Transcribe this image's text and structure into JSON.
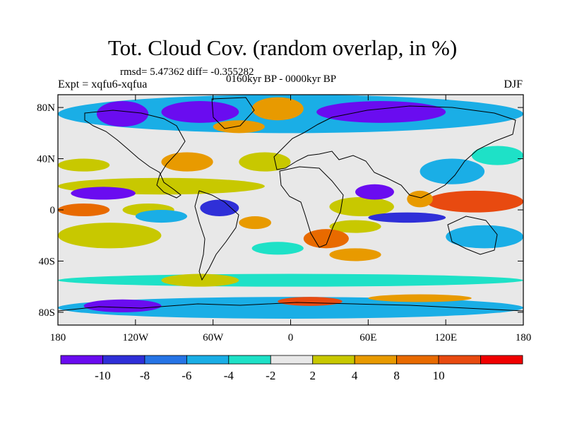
{
  "header": {
    "title": "Tot. Cloud Cov. (random overlap, in %)",
    "stats": "rmsd= 5.47362 diff= -0.355282",
    "expt": "Expt = xqfu6-xqfua",
    "period": "0160kyr BP - 0000kyr BP",
    "season": "DJF"
  },
  "map": {
    "projection": "cylindrical-equidistant",
    "lon_range": [
      -180,
      180
    ],
    "lat_range": [
      -90,
      90
    ],
    "lon_ticks": [
      {
        "value": -180,
        "label": "180"
      },
      {
        "value": -120,
        "label": "120W"
      },
      {
        "value": -60,
        "label": "60W"
      },
      {
        "value": 0,
        "label": "0"
      },
      {
        "value": 60,
        "label": "60E"
      },
      {
        "value": 120,
        "label": "120E"
      },
      {
        "value": 180,
        "label": "180"
      }
    ],
    "lat_ticks": [
      {
        "value": 80,
        "label": "80N"
      },
      {
        "value": 40,
        "label": "40N"
      },
      {
        "value": 0,
        "label": "0"
      },
      {
        "value": -40,
        "label": "40S"
      },
      {
        "value": -80,
        "label": "80S"
      }
    ],
    "anomaly_regions": [
      {
        "lon": [
          -180,
          180
        ],
        "lat": [
          60,
          90
        ],
        "value": -6
      },
      {
        "lon": [
          -150,
          -110
        ],
        "lat": [
          65,
          85
        ],
        "value": -11
      },
      {
        "lon": [
          -100,
          -40
        ],
        "lat": [
          68,
          85
        ],
        "value": -11
      },
      {
        "lon": [
          20,
          120
        ],
        "lat": [
          68,
          85
        ],
        "value": -11
      },
      {
        "lon": [
          -30,
          10
        ],
        "lat": [
          70,
          88
        ],
        "value": 6
      },
      {
        "lon": [
          -60,
          -20
        ],
        "lat": [
          60,
          70
        ],
        "value": 6
      },
      {
        "lon": [
          -100,
          -60
        ],
        "lat": [
          30,
          45
        ],
        "value": 6
      },
      {
        "lon": [
          -180,
          -140
        ],
        "lat": [
          30,
          40
        ],
        "value": 3
      },
      {
        "lon": [
          -40,
          0
        ],
        "lat": [
          30,
          45
        ],
        "value": 3
      },
      {
        "lon": [
          140,
          180
        ],
        "lat": [
          35,
          50
        ],
        "value": -3
      },
      {
        "lon": [
          100,
          150
        ],
        "lat": [
          20,
          40
        ],
        "value": -5
      },
      {
        "lon": [
          -180,
          -20
        ],
        "lat": [
          12,
          25
        ],
        "value": 3
      },
      {
        "lon": [
          -170,
          -120
        ],
        "lat": [
          8,
          18
        ],
        "value": -11
      },
      {
        "lon": [
          -180,
          -140
        ],
        "lat": [
          -5,
          5
        ],
        "value": 9
      },
      {
        "lon": [
          -130,
          -90
        ],
        "lat": [
          -5,
          5
        ],
        "value": 3
      },
      {
        "lon": [
          -120,
          -80
        ],
        "lat": [
          -10,
          0
        ],
        "value": -5
      },
      {
        "lon": [
          -70,
          -40
        ],
        "lat": [
          -5,
          8
        ],
        "value": -9
      },
      {
        "lon": [
          -180,
          -100
        ],
        "lat": [
          -30,
          -10
        ],
        "value": 3
      },
      {
        "lon": [
          -40,
          -15
        ],
        "lat": [
          -15,
          -5
        ],
        "value": 6
      },
      {
        "lon": [
          30,
          80
        ],
        "lat": [
          -5,
          10
        ],
        "value": 3
      },
      {
        "lon": [
          50,
          80
        ],
        "lat": [
          8,
          20
        ],
        "value": -11
      },
      {
        "lon": [
          60,
          120
        ],
        "lat": [
          -10,
          -2
        ],
        "value": -9
      },
      {
        "lon": [
          30,
          70
        ],
        "lat": [
          -18,
          -8
        ],
        "value": 3
      },
      {
        "lon": [
          10,
          45
        ],
        "lat": [
          -30,
          -15
        ],
        "value": 9
      },
      {
        "lon": [
          30,
          70
        ],
        "lat": [
          -40,
          -30
        ],
        "value": 6
      },
      {
        "lon": [
          -30,
          10
        ],
        "lat": [
          -35,
          -25
        ],
        "value": -3
      },
      {
        "lon": [
          105,
          180
        ],
        "lat": [
          -2,
          15
        ],
        "value": 11
      },
      {
        "lon": [
          90,
          110
        ],
        "lat": [
          2,
          15
        ],
        "value": 6
      },
      {
        "lon": [
          120,
          180
        ],
        "lat": [
          -30,
          -12
        ],
        "value": -5
      },
      {
        "lon": [
          -180,
          180
        ],
        "lat": [
          -60,
          -50
        ],
        "value": -3
      },
      {
        "lon": [
          -100,
          -40
        ],
        "lat": [
          -60,
          -50
        ],
        "value": 3
      },
      {
        "lon": [
          -180,
          180
        ],
        "lat": [
          -85,
          -68
        ],
        "value": -5
      },
      {
        "lon": [
          -160,
          -100
        ],
        "lat": [
          -80,
          -70
        ],
        "value": -11
      },
      {
        "lon": [
          -10,
          40
        ],
        "lat": [
          -75,
          -68
        ],
        "value": 11
      },
      {
        "lon": [
          60,
          140
        ],
        "lat": [
          -72,
          -66
        ],
        "value": 6
      }
    ]
  },
  "colorbar": {
    "colors": [
      "#6a0cf0",
      "#2f2fd8",
      "#2674e6",
      "#1aaee6",
      "#1ee1c7",
      "#e8e8e8",
      "#c8c800",
      "#e89a00",
      "#e86a00",
      "#e84a10",
      "#f00000"
    ],
    "labels": [
      "-10",
      "-8",
      "-6",
      "-4",
      "-2",
      "2",
      "4",
      "8",
      "10"
    ],
    "levels": [
      -10,
      -8,
      -6,
      -4,
      -2,
      2,
      4,
      8,
      10
    ]
  }
}
